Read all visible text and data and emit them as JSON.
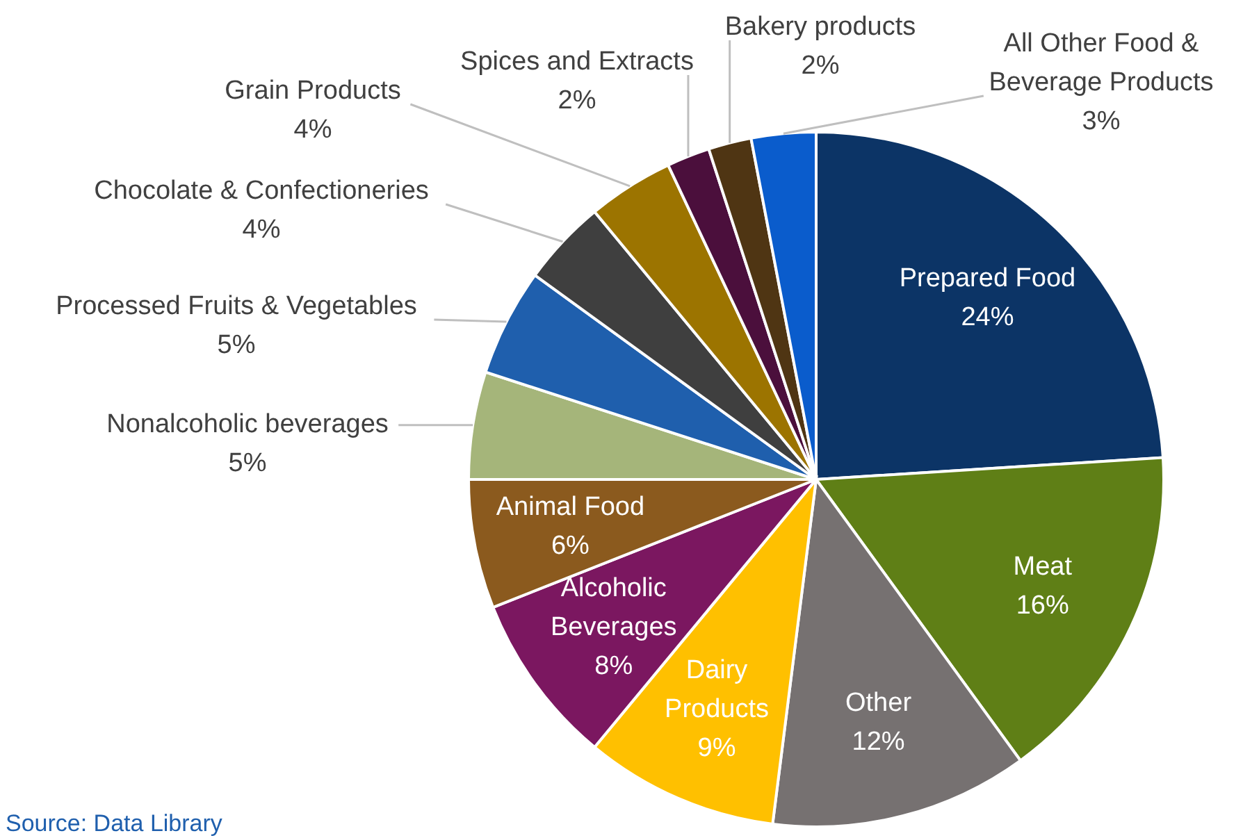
{
  "chart_data": {
    "type": "pie",
    "categories": [
      "Prepared Food",
      "Meat",
      "Other",
      "Dairy Products",
      "Alcoholic Beverages",
      "Animal Food",
      "Nonalcoholic beverages",
      "Processed Fruits & Vegetables",
      "Chocolate & Confectioneries",
      "Grain Products",
      "Spices and Extracts",
      "Bakery products",
      "All Other Food & Beverage Products"
    ],
    "values": [
      24,
      16,
      12,
      9,
      8,
      6,
      5,
      5,
      4,
      4,
      2,
      2,
      3
    ],
    "value_labels": [
      "24%",
      "16%",
      "12%",
      "9%",
      "8%",
      "6%",
      "5%",
      "5%",
      "4%",
      "4%",
      "2%",
      "2%",
      "3%"
    ],
    "colors": [
      "#0c3466",
      "#5f7f16",
      "#767171",
      "#ffc000",
      "#7b1760",
      "#8b5a1e",
      "#a5b57a",
      "#1f5fad",
      "#3f3f3f",
      "#9c7400",
      "#4b0f3c",
      "#4f3513",
      "#0a5ccc"
    ],
    "legend": false,
    "annotations": [
      "Source: Data Library"
    ]
  }
}
